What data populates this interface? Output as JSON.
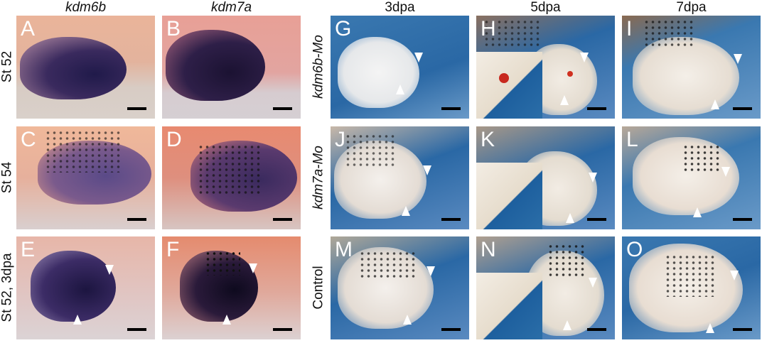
{
  "column_headers": {
    "left": [
      "kdm6b",
      "kdm7a"
    ],
    "right": [
      "3dpa",
      "5dpa",
      "7dpa"
    ]
  },
  "row_labels": {
    "left": [
      "St 52",
      "St 54",
      "St 52, 3dpa"
    ],
    "right": [
      "kdm6b-Mo",
      "kdm7a-Mo",
      "Control"
    ]
  },
  "panels": {
    "A": "A",
    "B": "B",
    "C": "C",
    "D": "D",
    "E": "E",
    "F": "F",
    "G": "G",
    "H": "H",
    "I": "I",
    "J": "J",
    "K": "K",
    "L": "L",
    "M": "M",
    "N": "N",
    "O": "O"
  },
  "colors": {
    "stain": "#2a1a4a",
    "pink_tissue": "#e8a08c",
    "blue_background": "#2a68a5"
  }
}
